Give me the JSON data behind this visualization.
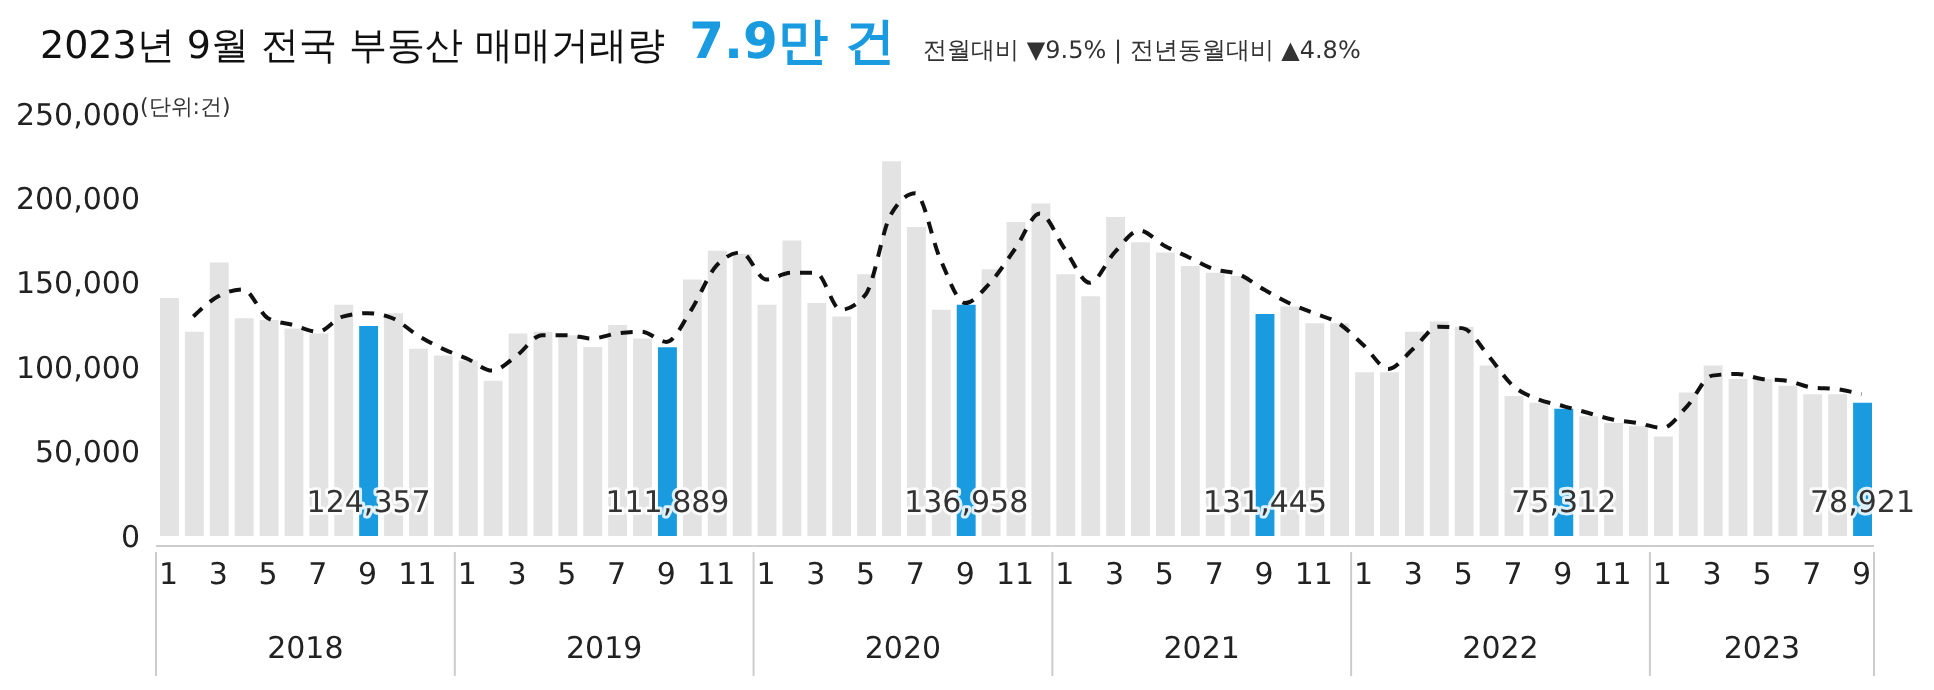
{
  "chart_data": {
    "type": "bar",
    "title": "2023년 9월 전국 부동산 매매거래량",
    "subtitle": "7.9만 건",
    "annotations": [
      "전월대비 ▼9.5% | 전년동월대비 ▲4.8%",
      "(단위:건)",
      "2018",
      "2019",
      "2020",
      "2021",
      "2022",
      "2023"
    ],
    "categories": [
      "1",
      null,
      "3",
      null,
      "5",
      null,
      "7",
      null,
      "9",
      null,
      "11",
      null,
      "1",
      null,
      "3",
      null,
      "5",
      null,
      "7",
      null,
      "9",
      null,
      "11",
      null,
      "1",
      null,
      "3",
      null,
      "5",
      null,
      "7",
      null,
      "9",
      null,
      "11",
      null,
      "1",
      null,
      "3",
      null,
      "5",
      null,
      "7",
      null,
      "9",
      null,
      "11",
      null,
      "1",
      null,
      "3",
      null,
      "5",
      null,
      "7",
      null,
      "9",
      null,
      "11",
      null,
      "1",
      null,
      "3",
      null,
      "5",
      null,
      "7",
      null,
      "9"
    ],
    "ylim": [
      0,
      250000
    ],
    "yticks": [
      {
        "value": 0,
        "label": "0"
      },
      {
        "value": 50000,
        "label": "50,000"
      },
      {
        "value": 100000,
        "label": "100,000"
      },
      {
        "value": 150000,
        "label": "150,000"
      },
      {
        "value": 200000,
        "label": "200,000"
      },
      {
        "value": 250000,
        "label": "250,000"
      }
    ],
    "grid": false,
    "series": [
      {
        "color": "#e3e3e3",
        "colors": [
          "#e3e3e3",
          "#e3e3e3",
          "#e3e3e3",
          "#e3e3e3",
          "#e3e3e3",
          "#e3e3e3",
          "#e3e3e3",
          "#e3e3e3",
          "#1a9be0",
          "#e3e3e3",
          "#e3e3e3",
          "#e3e3e3",
          "#e3e3e3",
          "#e3e3e3",
          "#e3e3e3",
          "#e3e3e3",
          "#e3e3e3",
          "#e3e3e3",
          "#e3e3e3",
          "#e3e3e3",
          "#1a9be0",
          "#e3e3e3",
          "#e3e3e3",
          "#e3e3e3",
          "#e3e3e3",
          "#e3e3e3",
          "#e3e3e3",
          "#e3e3e3",
          "#e3e3e3",
          "#e3e3e3",
          "#e3e3e3",
          "#e3e3e3",
          "#1a9be0",
          "#e3e3e3",
          "#e3e3e3",
          "#e3e3e3",
          "#e3e3e3",
          "#e3e3e3",
          "#e3e3e3",
          "#e3e3e3",
          "#e3e3e3",
          "#e3e3e3",
          "#e3e3e3",
          "#e3e3e3",
          "#1a9be0",
          "#e3e3e3",
          "#e3e3e3",
          "#e3e3e3",
          "#e3e3e3",
          "#e3e3e3",
          "#e3e3e3",
          "#e3e3e3",
          "#e3e3e3",
          "#e3e3e3",
          "#e3e3e3",
          "#e3e3e3",
          "#1a9be0",
          "#e3e3e3",
          "#e3e3e3",
          "#e3e3e3",
          "#e3e3e3",
          "#e3e3e3",
          "#e3e3e3",
          "#e3e3e3",
          "#e3e3e3",
          "#e3e3e3",
          "#e3e3e3",
          "#e3e3e3",
          "#1a9be0"
        ],
        "values": [
          141000,
          121000,
          162000,
          129000,
          128000,
          123000,
          120000,
          137000,
          124357,
          132000,
          111000,
          107000,
          104000,
          92000,
          120000,
          121000,
          119000,
          112000,
          125000,
          117000,
          111889,
          152000,
          169000,
          167000,
          137000,
          175000,
          138000,
          130000,
          155000,
          222000,
          183000,
          134000,
          136958,
          158000,
          186000,
          197000,
          155000,
          142000,
          189000,
          174000,
          168000,
          160000,
          156000,
          154000,
          131445,
          136000,
          126000,
          126000,
          97000,
          97000,
          121000,
          127000,
          124000,
          101000,
          83000,
          79000,
          75312,
          71000,
          67000,
          65000,
          59000,
          85000,
          101000,
          93000,
          93000,
          89000,
          84000,
          84000,
          78921
        ],
        "value_labels": [
          null,
          null,
          null,
          null,
          null,
          null,
          null,
          null,
          "124,357",
          null,
          null,
          null,
          null,
          null,
          null,
          null,
          null,
          null,
          null,
          null,
          "111,889",
          null,
          null,
          null,
          null,
          null,
          null,
          null,
          null,
          null,
          null,
          null,
          "136,958",
          null,
          null,
          null,
          null,
          null,
          null,
          null,
          null,
          null,
          null,
          null,
          "131,445",
          null,
          null,
          null,
          null,
          null,
          null,
          null,
          null,
          null,
          null,
          null,
          "75,312",
          null,
          null,
          null,
          null,
          null,
          null,
          null,
          null,
          null,
          null,
          null,
          "78,921"
        ]
      },
      {
        "type": "line",
        "color": "#111111",
        "line_style": "dashed",
        "marker": "none",
        "values": [
          null,
          130000,
          142000,
          146000,
          129000,
          125000,
          121000,
          130000,
          132000,
          129000,
          119000,
          111000,
          105000,
          98000,
          107000,
          119000,
          119000,
          117000,
          120000,
          121000,
          115000,
          134000,
          160000,
          168000,
          152000,
          156000,
          156000,
          134000,
          143000,
          190000,
          203000,
          164000,
          138000,
          150000,
          170000,
          191000,
          170000,
          150000,
          168000,
          181000,
          172000,
          165000,
          158000,
          155000,
          146000,
          138000,
          132000,
          126000,
          113000,
          99000,
          111000,
          124000,
          123000,
          107000,
          89000,
          81000,
          77000,
          73000,
          69000,
          67000,
          64000,
          77000,
          95000,
          96000,
          93000,
          92000,
          88000,
          87000,
          84000
        ]
      }
    ]
  }
}
